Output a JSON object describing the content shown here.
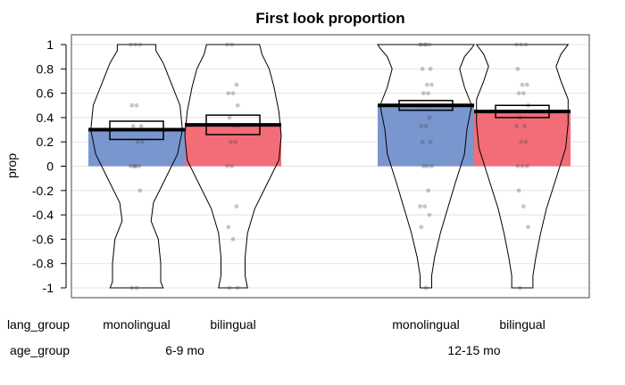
{
  "chart_data": {
    "type": "bar",
    "title": "First look proportion",
    "ylabel": "prop",
    "ylim": [
      -1,
      1
    ],
    "yticks": [
      "-1",
      "-0.8",
      "-0.6",
      "-0.4",
      "-0.2",
      "0",
      "0.2",
      "0.4",
      "0.6",
      "0.8",
      "1"
    ],
    "grid": true,
    "x_factor_labels": [
      "lang_group",
      "age_group"
    ],
    "groups": [
      {
        "age_group": "6-9 mo",
        "bars": [
          {
            "lang_group": "monolingual",
            "mean": 0.3,
            "ci": [
              0.22,
              0.37
            ],
            "color": "#7a96cf",
            "points": [
              1,
              1,
              1,
              0.5,
              0.5,
              0.33,
              0.33,
              0.2,
              0.2,
              0,
              0,
              0,
              0,
              -0.2,
              -1,
              -1
            ]
          },
          {
            "lang_group": "bilingual",
            "mean": 0.34,
            "ci": [
              0.26,
              0.42
            ],
            "color": "#f26d78",
            "points": [
              1,
              1,
              0.67,
              0.6,
              0.6,
              0.5,
              0.4,
              0.33,
              0.33,
              0.2,
              0.2,
              0,
              0,
              -0.33,
              -0.5,
              -0.6,
              -1,
              -1
            ]
          }
        ]
      },
      {
        "age_group": "12-15 mo",
        "bars": [
          {
            "lang_group": "monolingual",
            "mean": 0.5,
            "ci": [
              0.46,
              0.54
            ],
            "color": "#7a96cf",
            "points": [
              1,
              1,
              1,
              1,
              1,
              0.8,
              0.8,
              0.67,
              0.67,
              0.6,
              0.6,
              0.5,
              0.5,
              0.4,
              0.33,
              0.33,
              0.2,
              0.2,
              0,
              0,
              0,
              -0.2,
              -0.33,
              -0.33,
              -0.4,
              -0.5,
              -1
            ]
          },
          {
            "lang_group": "bilingual",
            "mean": 0.45,
            "ci": [
              0.4,
              0.5
            ],
            "color": "#f26d78",
            "points": [
              1,
              1,
              1,
              0.8,
              0.67,
              0.67,
              0.6,
              0.6,
              0.5,
              0.4,
              0.33,
              0.33,
              0.2,
              0.2,
              0,
              0,
              0,
              -0.2,
              -0.33,
              -0.5,
              -1
            ]
          }
        ]
      }
    ]
  }
}
